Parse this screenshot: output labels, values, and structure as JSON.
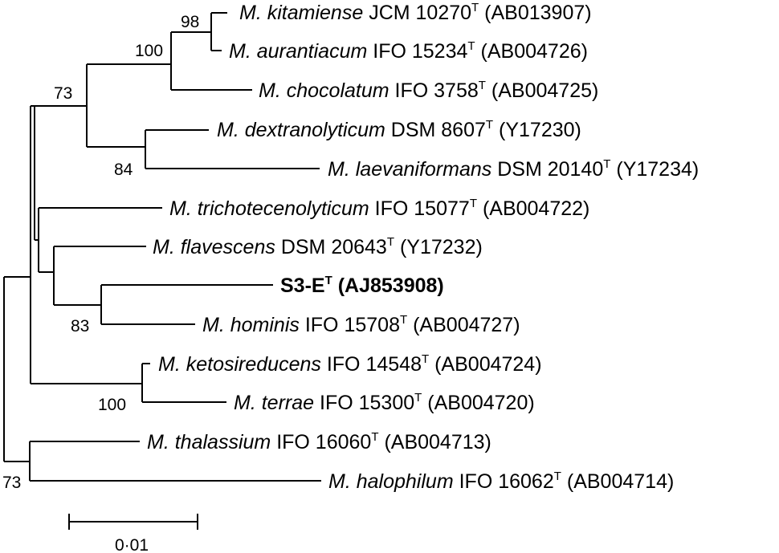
{
  "taxa": [
    {
      "genus": "M.",
      "species": "kitamiense",
      "strain": "JCM 10270",
      "type_mark": "T",
      "accession": "(AB013907)"
    },
    {
      "genus": "M.",
      "species": "aurantiacum",
      "strain": "IFO 15234",
      "type_mark": "T",
      "accession": "(AB004726)"
    },
    {
      "genus": "M.",
      "species": "chocolatum",
      "strain": "IFO 3758",
      "type_mark": "T",
      "accession": "(AB004725)"
    },
    {
      "genus": "M.",
      "species": "dextranolyticum",
      "strain": "DSM 8607",
      "type_mark": "T",
      "accession": "(Y17230)"
    },
    {
      "genus": "M.",
      "species": "laevaniformans",
      "strain": "DSM 20140",
      "type_mark": "T",
      "accession": "(Y17234)"
    },
    {
      "genus": "M.",
      "species": "trichotecenolyticum",
      "strain": "IFO 15077",
      "type_mark": "T",
      "accession": "(AB004722)"
    },
    {
      "genus": "M.",
      "species": "flavescens",
      "strain": "DSM 20643",
      "type_mark": "T",
      "accession": "(Y17232)"
    },
    {
      "genus": "",
      "species": "",
      "strain": "S3-E",
      "type_mark": "T",
      "accession": "(AJ853908)"
    },
    {
      "genus": "M.",
      "species": "hominis",
      "strain": "IFO 15708",
      "type_mark": "T",
      "accession": "(AB004727)"
    },
    {
      "genus": "M.",
      "species": "ketosireducens",
      "strain": "IFO 14548",
      "type_mark": "T",
      "accession": "(AB004724)"
    },
    {
      "genus": "M.",
      "species": "terrae",
      "strain": "IFO 15300",
      "type_mark": "T",
      "accession": "(AB004720)"
    },
    {
      "genus": "M.",
      "species": "thalassium",
      "strain": "IFO 16060",
      "type_mark": "T",
      "accession": "(AB004713)"
    },
    {
      "genus": "M.",
      "species": "halophilum",
      "strain": "IFO 16062",
      "type_mark": "T",
      "accession": "(AB004714)"
    }
  ],
  "bootstrap": [
    "98",
    "100",
    "73",
    "84",
    "83",
    "100",
    "73"
  ],
  "scale_bar": {
    "label": "0·01"
  },
  "colors": {
    "line": "#000000",
    "text": "#000000",
    "background": "#ffffff"
  }
}
